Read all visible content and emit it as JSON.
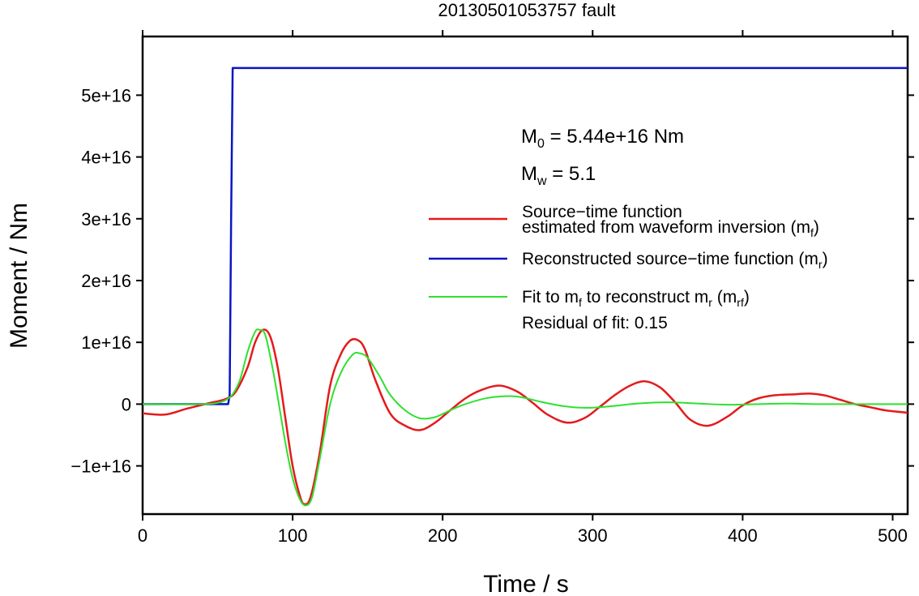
{
  "chart_data": {
    "type": "line",
    "title": "20130501053757 fault",
    "xlabel": "Time / s",
    "ylabel": "Moment / Nm",
    "xlim": [
      0,
      510
    ],
    "ylim": [
      -1.78e+16,
      5.95e+16
    ],
    "x_ticks": [
      0,
      100,
      200,
      300,
      400,
      500
    ],
    "x_tick_labels": [
      "0",
      "100",
      "200",
      "300",
      "400",
      "500"
    ],
    "y_ticks": [
      -1e+16,
      0,
      1e+16,
      2e+16,
      3e+16,
      4e+16,
      5e+16
    ],
    "y_tick_labels": [
      "−1e+16",
      "0",
      "1e+16",
      "2e+16",
      "3e+16",
      "4e+16",
      "5e+16"
    ],
    "grid": false,
    "legend_position": "right",
    "annotations": {
      "m0_base": "M",
      "m0_sub": "0",
      "m0_rest": " = 5.44e+16 Nm",
      "mw_base": "M",
      "mw_sub": "w",
      "mw_rest": " = 5.1",
      "residual": "Residual of fit: 0.15"
    },
    "legend": [
      {
        "lines": [
          "Source−time function",
          "estimated from waveform inversion (m"
        ],
        "sub": "f",
        "tail": ")",
        "color": "#e41a1c"
      },
      {
        "lines": [
          "Reconstructed source−time function (m"
        ],
        "sub": "r",
        "tail": ")",
        "color": "#0a14c8"
      },
      {
        "lines": [
          "Fit to m"
        ],
        "sub": "f",
        "mid": " to reconstruct m",
        "sub2": "r",
        "mid2": " (m",
        "sub3": "rf",
        "tail": ")",
        "color": "#2fe02f"
      }
    ],
    "series": [
      {
        "color": "#0a14c8",
        "x": [
          0,
          57,
          58,
          59,
          60,
          510
        ],
        "y": [
          0,
          0,
          1500000000000000.0,
          3e+16,
          5.44e+16,
          5.44e+16
        ]
      },
      {
        "color": "#e41a1c",
        "x": [
          0,
          15,
          30,
          45,
          55,
          62,
          70,
          75,
          80,
          85,
          90,
          95,
          100,
          105,
          108,
          112,
          118,
          125,
          132,
          138,
          143,
          148,
          155,
          165,
          175,
          185,
          195,
          205,
          215,
          225,
          238,
          250,
          260,
          270,
          283,
          295,
          305,
          315,
          325,
          335,
          345,
          355,
          365,
          377,
          390,
          400,
          410,
          420,
          435,
          445,
          455,
          465,
          475,
          485,
          495,
          510
        ],
        "y": [
          -1500000000000000.0,
          -1700000000000000.0,
          -700000000000000.0,
          200000000000000.0,
          800000000000000.0,
          2000000000000000.0,
          6000000000000000.0,
          1e+16,
          1.2e+16,
          1.1e+16,
          6000000000000000.0,
          -2000000000000000.0,
          -1e+16,
          -1.5e+16,
          -1.62e+16,
          -1.5e+16,
          -8000000000000000.0,
          3000000000000000.0,
          8000000000000000.0,
          1.02e+16,
          1.04e+16,
          9000000000000000.0,
          4000000000000000.0,
          -1500000000000000.0,
          -3500000000000000.0,
          -4200000000000000.0,
          -3000000000000000.0,
          -1000000000000000.0,
          900000000000000.0,
          2200000000000000.0,
          3000000000000000.0,
          2000000000000000.0,
          200000000000000.0,
          -1700000000000000.0,
          -3000000000000000.0,
          -2200000000000000.0,
          -400000000000000.0,
          1500000000000000.0,
          3000000000000000.0,
          3700000000000000.0,
          2700000000000000.0,
          300000000000000.0,
          -2500000000000000.0,
          -3500000000000000.0,
          -2000000000000000.0,
          -200000000000000.0,
          900000000000000.0,
          1400000000000000.0,
          1600000000000000.0,
          1700000000000000.0,
          1400000000000000.0,
          700000000000000.0,
          0,
          -500000000000000.0,
          -1000000000000000.0,
          -1400000000000000.0
        ]
      },
      {
        "color": "#2fe02f",
        "x": [
          0,
          40,
          50,
          55,
          60,
          65,
          70,
          75,
          78,
          82,
          88,
          95,
          100,
          105,
          109,
          113,
          118,
          125,
          132,
          140,
          145,
          150,
          158,
          165,
          175,
          185,
          195,
          205,
          215,
          230,
          245,
          255,
          265,
          280,
          295,
          310,
          330,
          350,
          370,
          390,
          410,
          430,
          450,
          480,
          510
        ],
        "y": [
          0,
          0,
          200000000000000.0,
          600000000000000.0,
          1600000000000000.0,
          4000000000000000.0,
          8500000000000000.0,
          1.17e+16,
          1.2e+16,
          1.1e+16,
          4000000000000000.0,
          -6000000000000000.0,
          -1.2e+16,
          -1.55e+16,
          -1.64e+16,
          -1.5e+16,
          -9000000000000000.0,
          0,
          5000000000000000.0,
          8000000000000000.0,
          8200000000000000.0,
          7500000000000000.0,
          4500000000000000.0,
          1500000000000000.0,
          -1000000000000000.0,
          -2300000000000000.0,
          -2100000000000000.0,
          -1000000000000000.0,
          0,
          1000000000000000.0,
          1300000000000000.0,
          1000000000000000.0,
          400000000000000.0,
          -300000000000000.0,
          -600000000000000.0,
          -400000000000000.0,
          100000000000000.0,
          300000000000000.0,
          100000000000000.0,
          -100000000000000.0,
          0,
          100000000000000.0,
          0,
          0,
          0
        ]
      }
    ]
  }
}
